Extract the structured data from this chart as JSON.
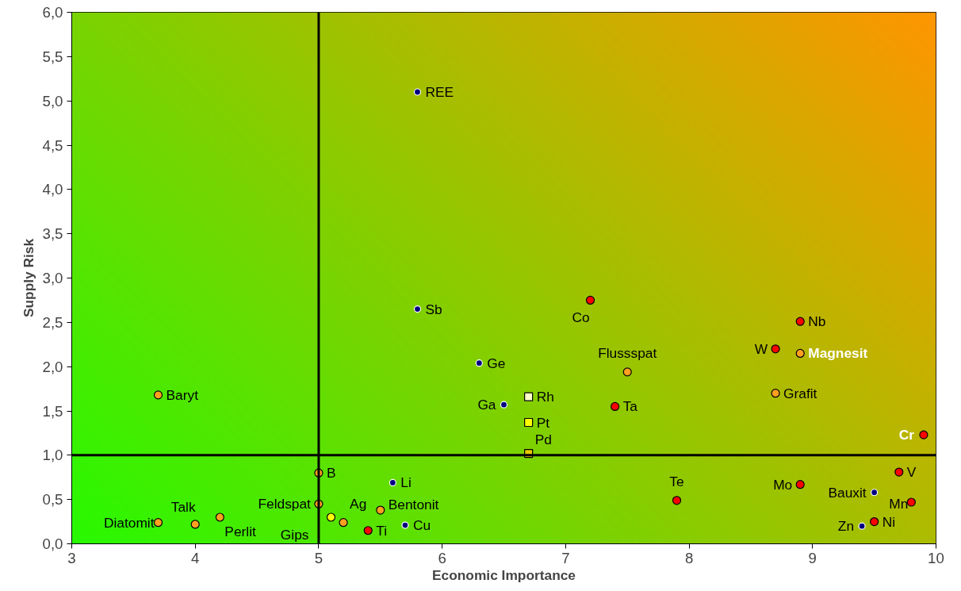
{
  "chart_data": {
    "type": "scatter",
    "xlabel": "Economic Importance",
    "ylabel": "Supply Risk",
    "xlim": [
      3,
      10
    ],
    "xticks": [
      3,
      4,
      5,
      6,
      7,
      8,
      9,
      10
    ],
    "ylim": [
      0,
      6
    ],
    "yticks": [
      {
        "value": 0,
        "label": "0,0"
      },
      {
        "value": 0.5,
        "label": "0,5"
      },
      {
        "value": 1,
        "label": "1,0"
      },
      {
        "value": 1.5,
        "label": "1,5"
      },
      {
        "value": 2,
        "label": "2,0"
      },
      {
        "value": 2.5,
        "label": "2,5"
      },
      {
        "value": 3,
        "label": "3,0"
      },
      {
        "value": 3.5,
        "label": "3,5"
      },
      {
        "value": 4,
        "label": "4,0"
      },
      {
        "value": 4.5,
        "label": "4,5"
      },
      {
        "value": 5,
        "label": "5,0"
      },
      {
        "value": 5.5,
        "label": "5,5"
      },
      {
        "value": 6,
        "label": "6,0"
      }
    ],
    "grid": false,
    "marker": "circle",
    "series": [
      {
        "color": "#000080",
        "x": [
          5.8,
          5.8,
          6.3,
          6.5,
          5.6,
          5.7,
          9.5,
          9.4
        ],
        "values": [
          5.1,
          2.65,
          2.04,
          1.57,
          0.69,
          0.21,
          0.58,
          0.2
        ]
      },
      {
        "color": "#ff0000",
        "x": [
          7.2,
          7.4,
          8.7,
          8.9,
          9.9,
          5.4,
          7.9,
          8.9,
          9.7,
          9.8,
          9.5
        ],
        "values": [
          2.75,
          1.55,
          2.2,
          2.51,
          1.23,
          0.15,
          0.49,
          0.67,
          0.81,
          0.47,
          0.25
        ]
      },
      {
        "color": "#ffa020",
        "x": [
          7.5,
          8.9,
          8.7,
          3.7,
          5.0,
          5.0,
          5.2,
          5.5,
          3.7,
          4.0,
          4.2
        ],
        "values": [
          1.94,
          2.15,
          1.7,
          1.68,
          0.8,
          0.45,
          0.24,
          0.38,
          0.24,
          0.22,
          0.3
        ]
      },
      {
        "color": "#ffff00",
        "x": [
          5.1
        ],
        "values": [
          0.3
        ]
      },
      {
        "marker": "square",
        "colors": [
          "#ffffcc",
          "#ffff00",
          "#e8c800"
        ],
        "x": [
          6.7,
          6.7,
          6.7
        ],
        "values": [
          1.66,
          1.37,
          1.02
        ]
      }
    ],
    "ref_lines": [
      {
        "axis": "x",
        "value": 5,
        "color": "#000000"
      },
      {
        "axis": "y",
        "value": 1,
        "color": "#000000"
      }
    ],
    "annotations": [
      {
        "text": "REE",
        "x": 5.8,
        "y": 5.1
      },
      {
        "text": "Sb",
        "x": 5.8,
        "y": 2.65
      },
      {
        "text": "Ge",
        "x": 6.3,
        "y": 2.04
      },
      {
        "text": "Ga",
        "x": 6.5,
        "y": 1.57
      },
      {
        "text": "Li",
        "x": 5.6,
        "y": 0.69
      },
      {
        "text": "Cu",
        "x": 5.7,
        "y": 0.21
      },
      {
        "text": "Bauxit",
        "x": 9.5,
        "y": 0.58
      },
      {
        "text": "Zn",
        "x": 9.4,
        "y": 0.2
      },
      {
        "text": "Co",
        "x": 7.2,
        "y": 2.75
      },
      {
        "text": "Ta",
        "x": 7.4,
        "y": 1.55
      },
      {
        "text": "W",
        "x": 8.7,
        "y": 2.2
      },
      {
        "text": "Nb",
        "x": 8.9,
        "y": 2.51
      },
      {
        "text": "Cr",
        "x": 9.9,
        "y": 1.23
      },
      {
        "text": "Ti",
        "x": 5.4,
        "y": 0.15
      },
      {
        "text": "Te",
        "x": 7.9,
        "y": 0.49
      },
      {
        "text": "Mo",
        "x": 8.9,
        "y": 0.67
      },
      {
        "text": "V",
        "x": 9.7,
        "y": 0.81
      },
      {
        "text": "Mn",
        "x": 9.8,
        "y": 0.47
      },
      {
        "text": "Ni",
        "x": 9.5,
        "y": 0.25
      },
      {
        "text": "Flussspat",
        "x": 7.5,
        "y": 1.94
      },
      {
        "text": "Magnesit",
        "x": 8.9,
        "y": 2.15
      },
      {
        "text": "Grafit",
        "x": 8.7,
        "y": 1.7
      },
      {
        "text": "Baryt",
        "x": 3.7,
        "y": 1.68
      },
      {
        "text": "B",
        "x": 5.0,
        "y": 0.8
      },
      {
        "text": "Feldspat",
        "x": 5.0,
        "y": 0.45
      },
      {
        "text": "Ag",
        "x": 5.2,
        "y": 0.24
      },
      {
        "text": "Bentonit",
        "x": 5.5,
        "y": 0.38
      },
      {
        "text": "Diatomit",
        "x": 3.7,
        "y": 0.24
      },
      {
        "text": "Talk",
        "x": 4.0,
        "y": 0.22
      },
      {
        "text": "Perlit",
        "x": 4.2,
        "y": 0.3
      },
      {
        "text": "Gips",
        "x": 5.1,
        "y": 0.3
      },
      {
        "text": "Rh",
        "x": 6.7,
        "y": 1.66
      },
      {
        "text": "Pt",
        "x": 6.7,
        "y": 1.37
      },
      {
        "text": "Pd",
        "x": 6.7,
        "y": 1.02
      }
    ]
  }
}
